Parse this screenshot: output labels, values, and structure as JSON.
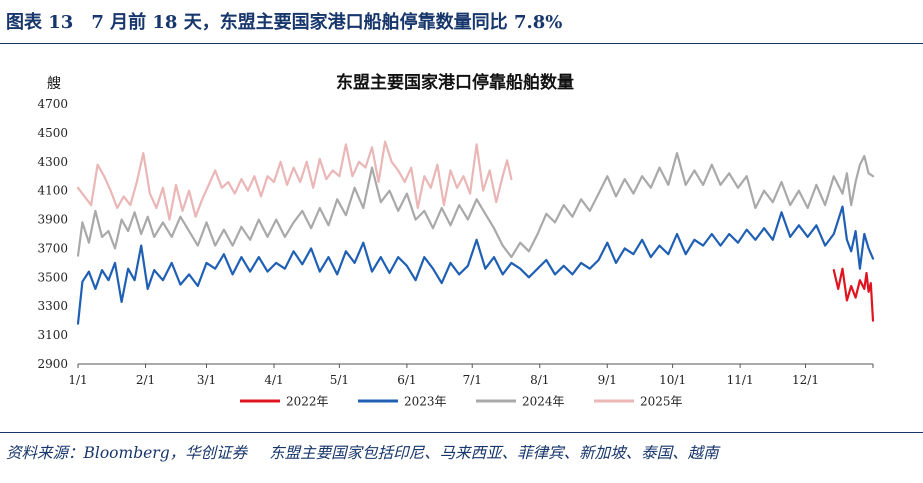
{
  "header": {
    "title": "图表 13　7 月前 18 天，东盟主要国家港口船舶停靠数量同比 7.8%"
  },
  "footer": {
    "source": "资料来源：Bloomberg，华创证券",
    "note": "东盟主要国家包括印尼、马来西亚、菲律宾、新加坡、泰国、越南"
  },
  "chart_data": {
    "type": "line",
    "title": "东盟主要国家港口停靠船舶数量",
    "ylabel": "艘",
    "ylim": [
      2900,
      4700
    ],
    "yticks": [
      2900,
      3100,
      3300,
      3500,
      3700,
      3900,
      4100,
      4300,
      4500,
      4700
    ],
    "x_unit": "day of year",
    "xlim": [
      1,
      366
    ],
    "xticks": [
      {
        "label": "1/1",
        "day": 1
      },
      {
        "label": "2/1",
        "day": 32
      },
      {
        "label": "3/1",
        "day": 60
      },
      {
        "label": "4/1",
        "day": 91
      },
      {
        "label": "5/1",
        "day": 121
      },
      {
        "label": "6/1",
        "day": 152
      },
      {
        "label": "7/1",
        "day": 182
      },
      {
        "label": "8/1",
        "day": 213
      },
      {
        "label": "9/1",
        "day": 244
      },
      {
        "label": "10/1",
        "day": 274
      },
      {
        "label": "11/1",
        "day": 305
      },
      {
        "label": "12/1",
        "day": 335
      }
    ],
    "legend_position": "bottom",
    "series": [
      {
        "name": "2022年",
        "color": "#e0141e",
        "points": [
          [
            348,
            3550
          ],
          [
            350,
            3420
          ],
          [
            352,
            3560
          ],
          [
            354,
            3340
          ],
          [
            356,
            3440
          ],
          [
            358,
            3360
          ],
          [
            360,
            3480
          ],
          [
            362,
            3420
          ],
          [
            363,
            3530
          ],
          [
            364,
            3400
          ],
          [
            365,
            3460
          ],
          [
            366,
            3200
          ]
        ]
      },
      {
        "name": "2023年",
        "color": "#1f5fb4",
        "points": [
          [
            1,
            3180
          ],
          [
            3,
            3470
          ],
          [
            6,
            3540
          ],
          [
            9,
            3420
          ],
          [
            12,
            3550
          ],
          [
            15,
            3480
          ],
          [
            18,
            3600
          ],
          [
            21,
            3330
          ],
          [
            24,
            3560
          ],
          [
            27,
            3480
          ],
          [
            30,
            3720
          ],
          [
            33,
            3420
          ],
          [
            36,
            3550
          ],
          [
            40,
            3480
          ],
          [
            44,
            3600
          ],
          [
            48,
            3450
          ],
          [
            52,
            3520
          ],
          [
            56,
            3440
          ],
          [
            60,
            3600
          ],
          [
            64,
            3560
          ],
          [
            68,
            3660
          ],
          [
            72,
            3520
          ],
          [
            76,
            3640
          ],
          [
            80,
            3540
          ],
          [
            84,
            3640
          ],
          [
            88,
            3540
          ],
          [
            92,
            3600
          ],
          [
            96,
            3560
          ],
          [
            100,
            3680
          ],
          [
            104,
            3590
          ],
          [
            108,
            3700
          ],
          [
            112,
            3540
          ],
          [
            116,
            3640
          ],
          [
            120,
            3520
          ],
          [
            124,
            3680
          ],
          [
            128,
            3600
          ],
          [
            132,
            3740
          ],
          [
            136,
            3540
          ],
          [
            140,
            3640
          ],
          [
            144,
            3530
          ],
          [
            148,
            3640
          ],
          [
            152,
            3580
          ],
          [
            156,
            3480
          ],
          [
            160,
            3640
          ],
          [
            164,
            3560
          ],
          [
            168,
            3460
          ],
          [
            172,
            3600
          ],
          [
            176,
            3520
          ],
          [
            180,
            3580
          ],
          [
            184,
            3760
          ],
          [
            188,
            3560
          ],
          [
            192,
            3640
          ],
          [
            196,
            3520
          ],
          [
            200,
            3600
          ],
          [
            204,
            3560
          ],
          [
            208,
            3500
          ],
          [
            212,
            3560
          ],
          [
            216,
            3620
          ],
          [
            220,
            3520
          ],
          [
            224,
            3580
          ],
          [
            228,
            3520
          ],
          [
            232,
            3600
          ],
          [
            236,
            3560
          ],
          [
            240,
            3620
          ],
          [
            244,
            3740
          ],
          [
            248,
            3600
          ],
          [
            252,
            3700
          ],
          [
            256,
            3660
          ],
          [
            260,
            3760
          ],
          [
            264,
            3640
          ],
          [
            268,
            3720
          ],
          [
            272,
            3660
          ],
          [
            276,
            3800
          ],
          [
            280,
            3660
          ],
          [
            284,
            3760
          ],
          [
            288,
            3720
          ],
          [
            292,
            3800
          ],
          [
            296,
            3720
          ],
          [
            300,
            3800
          ],
          [
            304,
            3740
          ],
          [
            308,
            3830
          ],
          [
            312,
            3760
          ],
          [
            316,
            3840
          ],
          [
            320,
            3760
          ],
          [
            324,
            3950
          ],
          [
            328,
            3780
          ],
          [
            332,
            3860
          ],
          [
            336,
            3780
          ],
          [
            340,
            3860
          ],
          [
            344,
            3720
          ],
          [
            348,
            3800
          ],
          [
            352,
            3990
          ],
          [
            354,
            3760
          ],
          [
            356,
            3680
          ],
          [
            358,
            3820
          ],
          [
            360,
            3560
          ],
          [
            362,
            3800
          ],
          [
            364,
            3700
          ],
          [
            366,
            3630
          ]
        ]
      },
      {
        "name": "2024年",
        "color": "#a9a9a9",
        "points": [
          [
            1,
            3650
          ],
          [
            3,
            3880
          ],
          [
            6,
            3740
          ],
          [
            9,
            3960
          ],
          [
            12,
            3780
          ],
          [
            15,
            3820
          ],
          [
            18,
            3700
          ],
          [
            21,
            3900
          ],
          [
            24,
            3820
          ],
          [
            27,
            3950
          ],
          [
            30,
            3800
          ],
          [
            33,
            3920
          ],
          [
            36,
            3780
          ],
          [
            40,
            3880
          ],
          [
            44,
            3780
          ],
          [
            48,
            3920
          ],
          [
            52,
            3820
          ],
          [
            56,
            3720
          ],
          [
            60,
            3880
          ],
          [
            64,
            3720
          ],
          [
            68,
            3830
          ],
          [
            72,
            3720
          ],
          [
            76,
            3850
          ],
          [
            80,
            3760
          ],
          [
            84,
            3900
          ],
          [
            88,
            3780
          ],
          [
            92,
            3900
          ],
          [
            96,
            3780
          ],
          [
            100,
            3880
          ],
          [
            104,
            3960
          ],
          [
            108,
            3840
          ],
          [
            112,
            3980
          ],
          [
            116,
            3860
          ],
          [
            120,
            4040
          ],
          [
            124,
            3930
          ],
          [
            128,
            4120
          ],
          [
            132,
            3980
          ],
          [
            136,
            4260
          ],
          [
            140,
            4020
          ],
          [
            144,
            4100
          ],
          [
            148,
            3960
          ],
          [
            152,
            4080
          ],
          [
            156,
            3900
          ],
          [
            160,
            3960
          ],
          [
            164,
            3840
          ],
          [
            168,
            3980
          ],
          [
            172,
            3860
          ],
          [
            176,
            4000
          ],
          [
            180,
            3900
          ],
          [
            184,
            4040
          ],
          [
            188,
            3940
          ],
          [
            192,
            3840
          ],
          [
            196,
            3720
          ],
          [
            200,
            3640
          ],
          [
            204,
            3740
          ],
          [
            208,
            3680
          ],
          [
            212,
            3800
          ],
          [
            216,
            3940
          ],
          [
            220,
            3880
          ],
          [
            224,
            4000
          ],
          [
            228,
            3920
          ],
          [
            232,
            4040
          ],
          [
            236,
            3960
          ],
          [
            240,
            4080
          ],
          [
            244,
            4200
          ],
          [
            248,
            4060
          ],
          [
            252,
            4180
          ],
          [
            256,
            4080
          ],
          [
            260,
            4200
          ],
          [
            264,
            4120
          ],
          [
            268,
            4260
          ],
          [
            272,
            4140
          ],
          [
            276,
            4360
          ],
          [
            280,
            4140
          ],
          [
            284,
            4240
          ],
          [
            288,
            4140
          ],
          [
            292,
            4280
          ],
          [
            296,
            4140
          ],
          [
            300,
            4220
          ],
          [
            304,
            4120
          ],
          [
            308,
            4200
          ],
          [
            312,
            3980
          ],
          [
            316,
            4100
          ],
          [
            320,
            4020
          ],
          [
            324,
            4160
          ],
          [
            328,
            4000
          ],
          [
            332,
            4100
          ],
          [
            336,
            3980
          ],
          [
            340,
            4140
          ],
          [
            344,
            4000
          ],
          [
            348,
            4200
          ],
          [
            352,
            4080
          ],
          [
            354,
            4220
          ],
          [
            356,
            4000
          ],
          [
            358,
            4160
          ],
          [
            360,
            4280
          ],
          [
            362,
            4340
          ],
          [
            364,
            4220
          ],
          [
            366,
            4200
          ]
        ]
      },
      {
        "name": "2025年",
        "color": "#eab6b6",
        "points": [
          [
            1,
            4120
          ],
          [
            4,
            4060
          ],
          [
            7,
            4000
          ],
          [
            10,
            4280
          ],
          [
            13,
            4200
          ],
          [
            16,
            4100
          ],
          [
            19,
            3980
          ],
          [
            22,
            4060
          ],
          [
            25,
            4000
          ],
          [
            28,
            4160
          ],
          [
            31,
            4360
          ],
          [
            34,
            4080
          ],
          [
            37,
            3980
          ],
          [
            40,
            4120
          ],
          [
            43,
            3900
          ],
          [
            46,
            4140
          ],
          [
            49,
            3960
          ],
          [
            52,
            4100
          ],
          [
            55,
            3920
          ],
          [
            58,
            4040
          ],
          [
            61,
            4140
          ],
          [
            64,
            4240
          ],
          [
            67,
            4120
          ],
          [
            70,
            4160
          ],
          [
            73,
            4080
          ],
          [
            76,
            4180
          ],
          [
            79,
            4100
          ],
          [
            82,
            4200
          ],
          [
            85,
            4060
          ],
          [
            88,
            4200
          ],
          [
            91,
            4160
          ],
          [
            94,
            4300
          ],
          [
            97,
            4140
          ],
          [
            100,
            4260
          ],
          [
            103,
            4160
          ],
          [
            106,
            4300
          ],
          [
            109,
            4120
          ],
          [
            112,
            4320
          ],
          [
            115,
            4180
          ],
          [
            118,
            4240
          ],
          [
            121,
            4200
          ],
          [
            124,
            4420
          ],
          [
            127,
            4200
          ],
          [
            130,
            4300
          ],
          [
            133,
            4260
          ],
          [
            136,
            4400
          ],
          [
            139,
            4160
          ],
          [
            142,
            4440
          ],
          [
            145,
            4300
          ],
          [
            148,
            4240
          ],
          [
            151,
            4160
          ],
          [
            154,
            4260
          ],
          [
            157,
            3980
          ],
          [
            160,
            4200
          ],
          [
            163,
            4120
          ],
          [
            166,
            4280
          ],
          [
            169,
            4000
          ],
          [
            172,
            4240
          ],
          [
            175,
            4120
          ],
          [
            178,
            4200
          ],
          [
            181,
            4080
          ],
          [
            184,
            4420
          ],
          [
            187,
            4100
          ],
          [
            190,
            4240
          ],
          [
            193,
            4020
          ],
          [
            196,
            4200
          ],
          [
            198,
            4310
          ],
          [
            200,
            4180
          ]
        ]
      }
    ]
  }
}
